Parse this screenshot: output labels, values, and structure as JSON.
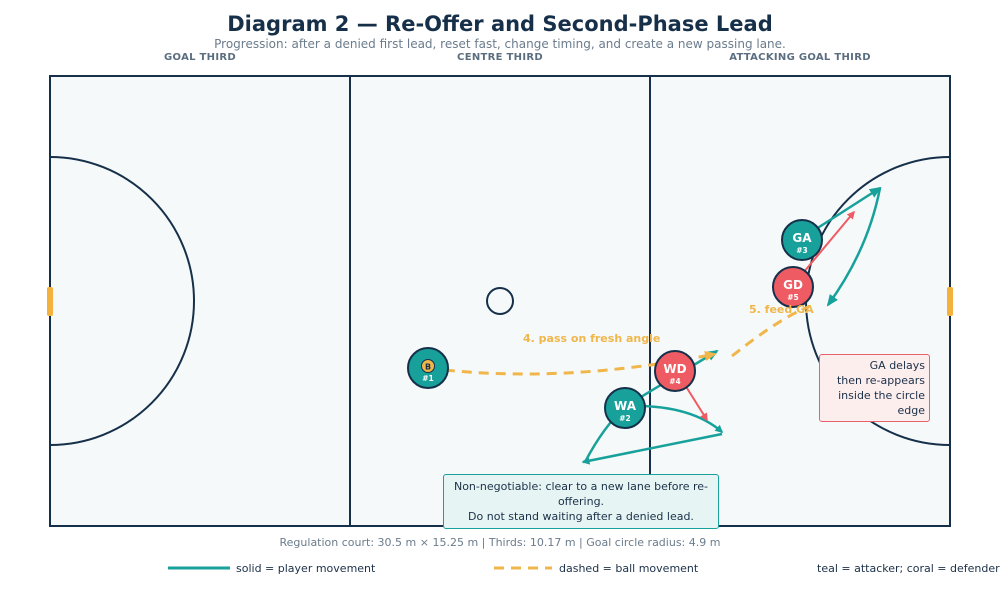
{
  "diagram": {
    "title": "Diagram 2 — Re-Offer and Second-Phase Lead",
    "subtitle": "Progression: after a denied first lead, reset fast, change timing, and create a new passing lane."
  },
  "zones": {
    "left": "GOAL THIRD",
    "centre": "CENTRE THIRD",
    "right": "ATTACKING GOAL THIRD"
  },
  "players": [
    {
      "id": "wc",
      "role": "",
      "number": "#1",
      "ball_marker": "B",
      "team": "attacker"
    },
    {
      "id": "wa",
      "role": "WA",
      "number": "#2",
      "team": "attacker"
    },
    {
      "id": "ga",
      "role": "GA",
      "number": "#3",
      "team": "attacker"
    },
    {
      "id": "wd",
      "role": "WD",
      "number": "#4",
      "team": "defender"
    },
    {
      "id": "gd",
      "role": "GD",
      "number": "#5",
      "team": "defender"
    }
  ],
  "annotations": {
    "pass1": "4. pass on fresh angle",
    "pass2": "5. feed GA"
  },
  "notes": {
    "teal": [
      "Non-negotiable: clear to a new lane before re-offering.",
      "Do not stand waiting after a denied lead."
    ],
    "coral": [
      "GA delays",
      "then re-appears",
      "inside the circle edge"
    ]
  },
  "footnote": "Regulation court: 30.5 m × 15.25 m  |  Thirds: 10.17 m  |  Goal circle radius: 4.9 m",
  "legend": {
    "solid": "solid = player movement",
    "dashed": "dashed = ball movement",
    "colors": "teal = attacker; coral = defender"
  },
  "colors": {
    "attacker": "#17a19a",
    "defender": "#ef5b63",
    "ball": "#f0b64a",
    "court_line": "#16304a",
    "court_fill": "#f5f9fa",
    "post": "#f4b23c"
  }
}
